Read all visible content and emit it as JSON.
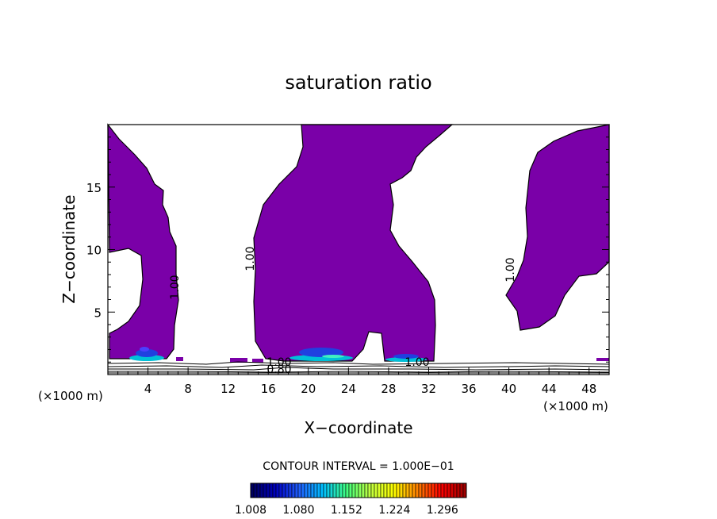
{
  "chart_data": {
    "type": "contour",
    "title": "saturation ratio",
    "xlabel": "X−coordinate",
    "ylabel": "Z−coordinate",
    "x_unit": "(×1000 m)",
    "y_unit": "(×1000 m)",
    "xlim": [
      0,
      50
    ],
    "ylim": [
      0,
      20
    ],
    "x_ticks": [
      "4",
      "8",
      "12",
      "16",
      "20",
      "24",
      "28",
      "32",
      "36",
      "40",
      "44",
      "48"
    ],
    "y_ticks": [
      "5",
      "10",
      "15"
    ],
    "contour_labels": [
      "1.00",
      "1.00",
      "1.00",
      "1.00",
      "0.80",
      "1.00"
    ],
    "contour_interval_text": "CONTOUR INTERVAL = 1.000E−01",
    "colorbar": {
      "min": 1.008,
      "max": 1.332,
      "tick_labels": [
        "1.008",
        "1.080",
        "1.152",
        "1.224",
        "1.296"
      ]
    },
    "fill_color": "#7a00a8",
    "palette": [
      "#000060",
      "#0000c0",
      "#2060ff",
      "#00c0ff",
      "#40ff80",
      "#c0ff40",
      "#ffff00",
      "#ff8000",
      "#ff0000",
      "#a00000"
    ]
  }
}
